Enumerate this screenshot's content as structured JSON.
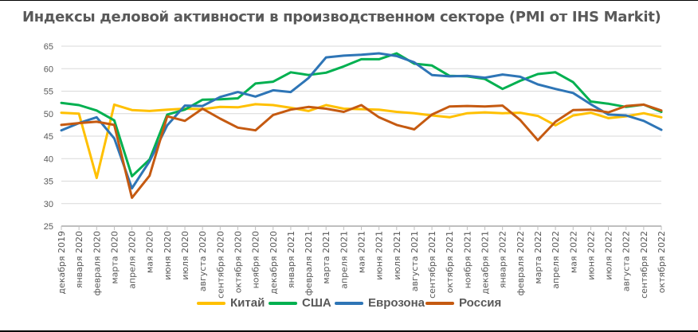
{
  "chart_data": {
    "type": "line",
    "title": "Индексы деловой активности в производственном секторе (PMI от IHS Markit)",
    "xlabel": "",
    "ylabel": "",
    "ylim": [
      25,
      65
    ],
    "yticks": [
      25,
      30,
      35,
      40,
      45,
      50,
      55,
      60,
      65
    ],
    "grid": true,
    "legend_position": "bottom",
    "categories": [
      "декабря 2019",
      "января 2020",
      "февраля 2020",
      "марта 2020",
      "апреля 2020",
      "мая 2020",
      "июня 2020",
      "июля 2020",
      "августа 2020",
      "сентября 2020",
      "октября 2020",
      "ноября 2020",
      "декабря 2020",
      "января 2021",
      "февраля 2021",
      "марта 2021",
      "апреля 2021",
      "мая 2021",
      "июня 2021",
      "июля 2021",
      "августа 2021",
      "сентября 2021",
      "октября 2021",
      "ноября 2021",
      "декабря 2021",
      "января 2022",
      "февраля 2022",
      "марта 2022",
      "апреля 2022",
      "мая 2022",
      "июня 2022",
      "июля 2022",
      "августа 2022",
      "сентября 2022",
      "октября 2022"
    ],
    "series": [
      {
        "name": "Китай",
        "color": "#FFC000",
        "values": [
          50.2,
          50.0,
          35.7,
          52.0,
          50.8,
          50.6,
          50.9,
          51.1,
          51.0,
          51.5,
          51.4,
          52.1,
          51.9,
          51.3,
          50.6,
          51.9,
          51.1,
          51.0,
          50.9,
          50.4,
          50.1,
          49.6,
          49.2,
          50.1,
          50.3,
          50.1,
          50.2,
          49.5,
          47.4,
          49.6,
          50.2,
          49.0,
          49.4,
          50.1,
          49.2
        ]
      },
      {
        "name": "США",
        "color": "#00B050",
        "values": [
          52.4,
          51.9,
          50.7,
          48.5,
          36.1,
          39.8,
          49.8,
          50.9,
          53.1,
          53.2,
          53.4,
          56.7,
          57.1,
          59.2,
          58.6,
          59.1,
          60.5,
          62.1,
          62.1,
          63.4,
          61.1,
          60.7,
          58.4,
          58.3,
          57.7,
          55.5,
          57.3,
          58.8,
          59.2,
          57.0,
          52.7,
          52.2,
          51.5,
          52.0,
          50.4
        ]
      },
      {
        "name": "Еврозона",
        "color": "#2E75B6",
        "values": [
          46.3,
          47.9,
          49.2,
          44.5,
          33.4,
          39.4,
          47.4,
          51.8,
          51.7,
          53.7,
          54.8,
          53.8,
          55.2,
          54.8,
          57.9,
          62.5,
          62.9,
          63.1,
          63.4,
          62.8,
          61.4,
          58.6,
          58.3,
          58.4,
          58.0,
          58.7,
          58.2,
          56.5,
          55.5,
          54.6,
          52.1,
          49.8,
          49.6,
          48.4,
          46.4
        ]
      },
      {
        "name": "Россия",
        "color": "#C55A11",
        "values": [
          47.5,
          47.9,
          48.2,
          47.5,
          31.3,
          36.2,
          49.4,
          48.4,
          51.1,
          48.9,
          46.9,
          46.3,
          49.7,
          50.9,
          51.5,
          51.1,
          50.4,
          51.9,
          49.2,
          47.5,
          46.5,
          49.8,
          51.6,
          51.7,
          51.6,
          51.8,
          48.6,
          44.1,
          48.2,
          50.8,
          50.9,
          50.3,
          51.7,
          52.0,
          50.7
        ]
      }
    ]
  }
}
